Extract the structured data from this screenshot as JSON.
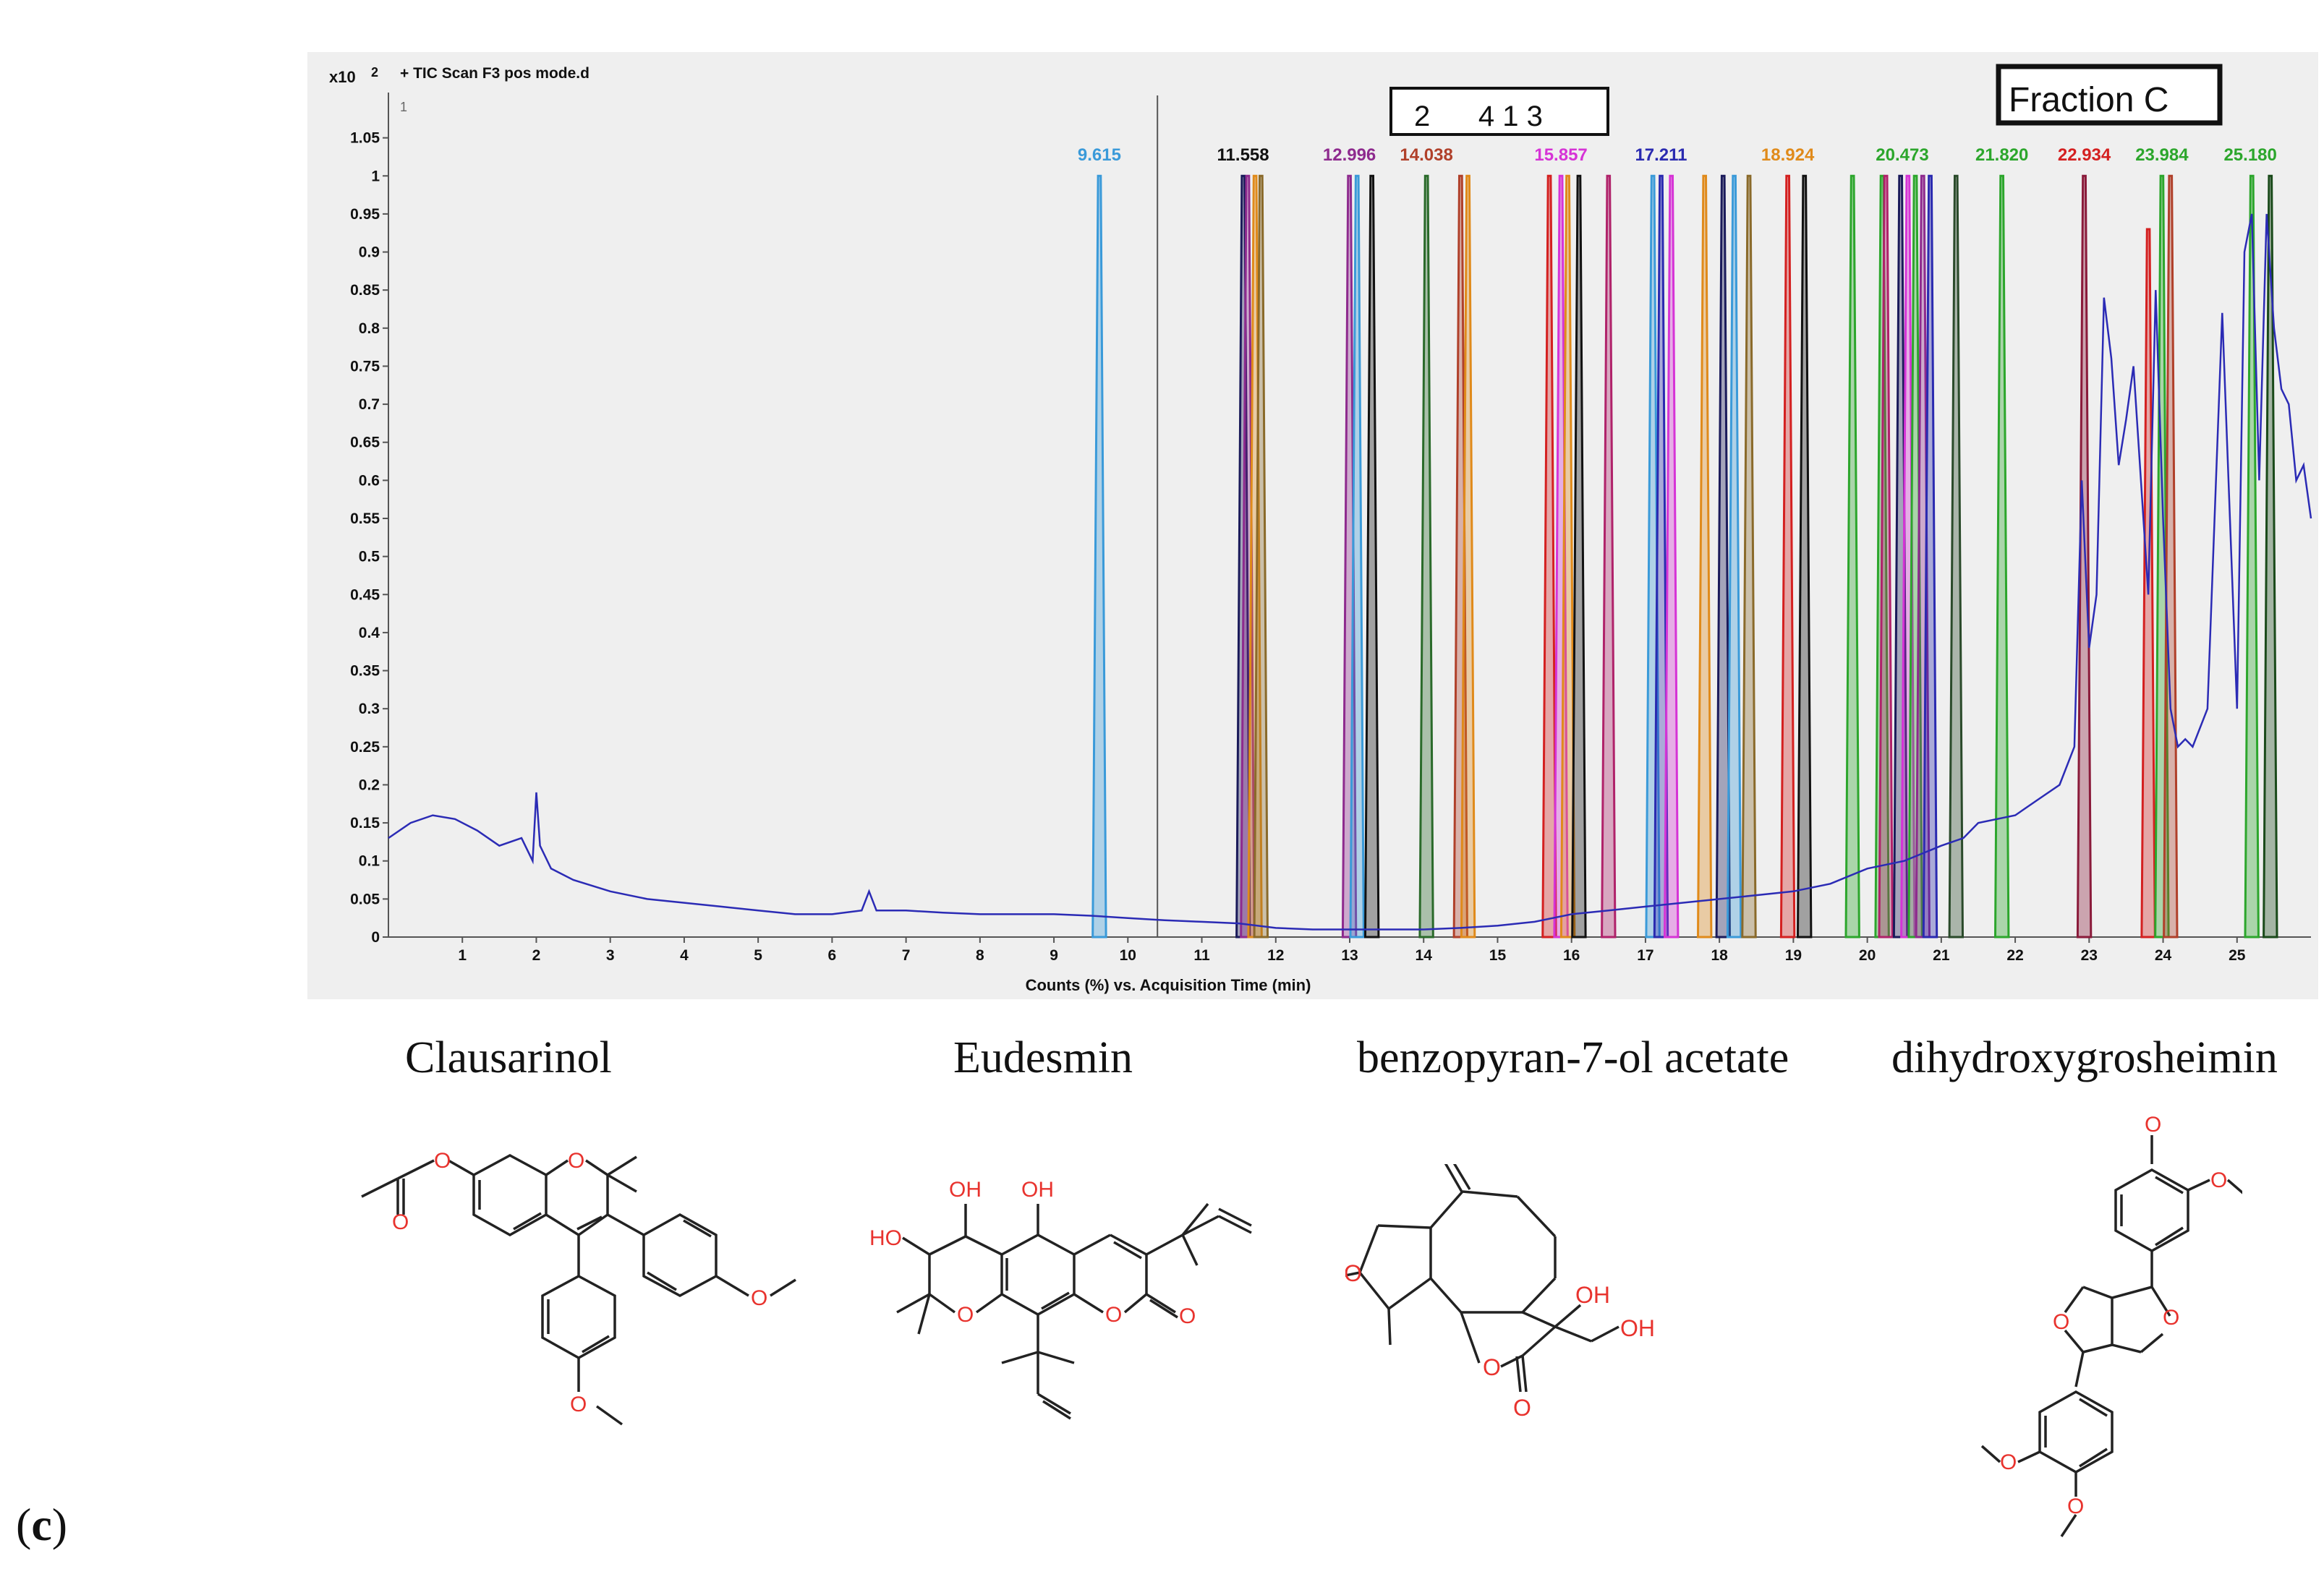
{
  "figure": {
    "panel_letter_open": "(",
    "panel_letter": "c",
    "panel_letter_close": ")"
  },
  "chart_data": {
    "type": "line",
    "title": "+ TIC Scan F3 pos mode.d",
    "y_exponent_label": "x10",
    "y_exponent_power": "2",
    "corner_tick": "1",
    "xlabel": "Counts (%) vs. Acquisition Time (min)",
    "ylabel": "",
    "xlim": [
      0,
      26
    ],
    "ylim": [
      0,
      1.1
    ],
    "x_ticks": [
      1,
      2,
      3,
      4,
      5,
      6,
      7,
      8,
      9,
      10,
      11,
      12,
      13,
      14,
      15,
      16,
      17,
      18,
      19,
      20,
      21,
      22,
      23,
      24,
      25
    ],
    "y_ticks": [
      0,
      0.05,
      0.1,
      0.15,
      0.2,
      0.25,
      0.3,
      0.35,
      0.4,
      0.45,
      0.5,
      0.55,
      0.6,
      0.65,
      0.7,
      0.75,
      0.8,
      0.85,
      0.9,
      0.95,
      1,
      1.05
    ],
    "y_tick_labels": [
      "0",
      "0.05",
      "0.1",
      "0.15",
      "0.2",
      "0.25",
      "0.3",
      "0.35",
      "0.4",
      "0.45",
      "0.5",
      "0.55",
      "0.6",
      "0.65",
      "0.7",
      "0.75",
      "0.8",
      "0.85",
      "0.9",
      "0.95",
      "1",
      "1.05"
    ],
    "boxed_annotation": "2      4 1 3",
    "fraction_label": "Fraction C",
    "vertical_marker_x": 10.4,
    "peak_labels": [
      {
        "text": "9.615",
        "x": 9.615,
        "color": "#3a9ad9"
      },
      {
        "text": "11.558",
        "x": 11.558,
        "color": "#111111"
      },
      {
        "text": "12.996",
        "x": 12.996,
        "color": "#8e2a8e"
      },
      {
        "text": "14.038",
        "x": 14.038,
        "color": "#b0402a"
      },
      {
        "text": "15.857",
        "x": 15.857,
        "color": "#d633d6"
      },
      {
        "text": "17.211",
        "x": 17.211,
        "color": "#2a2ab0"
      },
      {
        "text": "18.924",
        "x": 18.924,
        "color": "#e08a1a"
      },
      {
        "text": "20.473",
        "x": 20.473,
        "color": "#2ca62c"
      },
      {
        "text": "21.820",
        "x": 21.82,
        "color": "#2ca62c"
      },
      {
        "text": "22.934",
        "x": 22.934,
        "color": "#d42020"
      },
      {
        "text": "23.984",
        "x": 23.984,
        "color": "#2ca62c"
      },
      {
        "text": "25.180",
        "x": 25.18,
        "color": "#2ca62c"
      }
    ],
    "tic_series": {
      "name": "TIC",
      "color": "#2b2bb5",
      "x": [
        0,
        0.3,
        0.6,
        0.9,
        1.2,
        1.5,
        1.8,
        1.95,
        2.0,
        2.05,
        2.2,
        2.5,
        3,
        3.5,
        4,
        4.5,
        5,
        5.5,
        6,
        6.4,
        6.5,
        6.6,
        7,
        7.5,
        8,
        8.5,
        9,
        9.5,
        10,
        10.5,
        11,
        11.5,
        12,
        12.5,
        13,
        13.5,
        14,
        14.5,
        15,
        15.5,
        16,
        16.5,
        17,
        17.5,
        18,
        18.5,
        19,
        19.5,
        20,
        20.5,
        21,
        21.3,
        21.5,
        22,
        22.3,
        22.6,
        22.8,
        22.9,
        23.0,
        23.1,
        23.2,
        23.3,
        23.4,
        23.5,
        23.6,
        23.7,
        23.8,
        23.9,
        24.0,
        24.1,
        24.2,
        24.3,
        24.4,
        24.6,
        24.8,
        25.0,
        25.1,
        25.2,
        25.3,
        25.4,
        25.5,
        25.6,
        25.7,
        25.8,
        25.9,
        26
      ],
      "y": [
        0.13,
        0.15,
        0.16,
        0.155,
        0.14,
        0.12,
        0.13,
        0.1,
        0.19,
        0.12,
        0.09,
        0.075,
        0.06,
        0.05,
        0.045,
        0.04,
        0.035,
        0.03,
        0.03,
        0.035,
        0.06,
        0.035,
        0.035,
        0.032,
        0.03,
        0.03,
        0.03,
        0.028,
        0.025,
        0.022,
        0.02,
        0.018,
        0.012,
        0.01,
        0.01,
        0.01,
        0.01,
        0.012,
        0.015,
        0.02,
        0.03,
        0.035,
        0.04,
        0.045,
        0.05,
        0.055,
        0.06,
        0.07,
        0.09,
        0.1,
        0.12,
        0.13,
        0.15,
        0.16,
        0.18,
        0.2,
        0.25,
        0.6,
        0.38,
        0.45,
        0.84,
        0.76,
        0.62,
        0.68,
        0.75,
        0.6,
        0.45,
        0.85,
        0.55,
        0.3,
        0.25,
        0.26,
        0.25,
        0.3,
        0.82,
        0.3,
        0.9,
        0.95,
        0.6,
        0.95,
        0.8,
        0.72,
        0.7,
        0.6,
        0.62,
        0.55
      ]
    },
    "eic_peaks": [
      {
        "x": 9.615,
        "color": "#3a9ad9",
        "h": 1.0
      },
      {
        "x": 11.56,
        "color": "#1a1a5a",
        "h": 1.0
      },
      {
        "x": 11.62,
        "color": "#8e2a8e",
        "h": 1.0
      },
      {
        "x": 11.72,
        "color": "#e08a1a",
        "h": 1.0
      },
      {
        "x": 11.8,
        "color": "#8a6a2a",
        "h": 1.0
      },
      {
        "x": 12.996,
        "color": "#8e2a8e",
        "h": 1.0
      },
      {
        "x": 13.1,
        "color": "#3a9ad9",
        "h": 1.0
      },
      {
        "x": 13.3,
        "color": "#111111",
        "h": 1.0
      },
      {
        "x": 14.038,
        "color": "#2a6a2a",
        "h": 1.0
      },
      {
        "x": 14.5,
        "color": "#b0402a",
        "h": 1.0
      },
      {
        "x": 14.6,
        "color": "#e08a1a",
        "h": 1.0
      },
      {
        "x": 15.7,
        "color": "#d42020",
        "h": 1.0
      },
      {
        "x": 15.857,
        "color": "#d633d6",
        "h": 1.0
      },
      {
        "x": 15.95,
        "color": "#e08a1a",
        "h": 1.0
      },
      {
        "x": 16.1,
        "color": "#111111",
        "h": 1.0
      },
      {
        "x": 16.5,
        "color": "#b0226a",
        "h": 1.0
      },
      {
        "x": 17.1,
        "color": "#3a9ad9",
        "h": 1.0
      },
      {
        "x": 17.211,
        "color": "#2a2ab0",
        "h": 1.0
      },
      {
        "x": 17.35,
        "color": "#d633d6",
        "h": 1.0
      },
      {
        "x": 17.8,
        "color": "#e08a1a",
        "h": 1.0
      },
      {
        "x": 18.05,
        "color": "#1a1a5a",
        "h": 1.0
      },
      {
        "x": 18.2,
        "color": "#3a9ad9",
        "h": 1.0
      },
      {
        "x": 18.4,
        "color": "#8a6a2a",
        "h": 1.0
      },
      {
        "x": 18.924,
        "color": "#d42020",
        "h": 1.0
      },
      {
        "x": 19.15,
        "color": "#111111",
        "h": 1.0
      },
      {
        "x": 19.8,
        "color": "#2ca62c",
        "h": 1.0
      },
      {
        "x": 20.2,
        "color": "#2ca62c",
        "h": 1.0
      },
      {
        "x": 20.25,
        "color": "#b0226a",
        "h": 1.0
      },
      {
        "x": 20.45,
        "color": "#1a1a5a",
        "h": 1.0
      },
      {
        "x": 20.55,
        "color": "#d633d6",
        "h": 1.0
      },
      {
        "x": 20.65,
        "color": "#2ca62c",
        "h": 1.0
      },
      {
        "x": 20.75,
        "color": "#8e2a8e",
        "h": 1.0
      },
      {
        "x": 20.85,
        "color": "#2a2ab0",
        "h": 1.0
      },
      {
        "x": 21.2,
        "color": "#2a4a2a",
        "h": 1.0
      },
      {
        "x": 21.82,
        "color": "#2ca62c",
        "h": 1.0
      },
      {
        "x": 22.934,
        "color": "#8a1a3a",
        "h": 1.0
      },
      {
        "x": 23.8,
        "color": "#d42020",
        "h": 0.93
      },
      {
        "x": 23.984,
        "color": "#2ca62c",
        "h": 1.0
      },
      {
        "x": 24.1,
        "color": "#b0402a",
        "h": 1.0
      },
      {
        "x": 25.2,
        "color": "#2ca62c",
        "h": 1.0
      },
      {
        "x": 25.45,
        "color": "#1a4a1a",
        "h": 1.0
      }
    ]
  },
  "structures": [
    {
      "label": "Clausarinol"
    },
    {
      "label": "Eudesmin"
    },
    {
      "label": "benzopyran-7-ol acetate"
    },
    {
      "label": "dihydroxygrosheimin"
    }
  ],
  "atom_labels": {
    "O": "O",
    "OH": "OH",
    "HO": "HO"
  },
  "colors": {
    "bond": "#222222",
    "heteroatom": "#e8332e",
    "panel_bg": "#efefef"
  }
}
